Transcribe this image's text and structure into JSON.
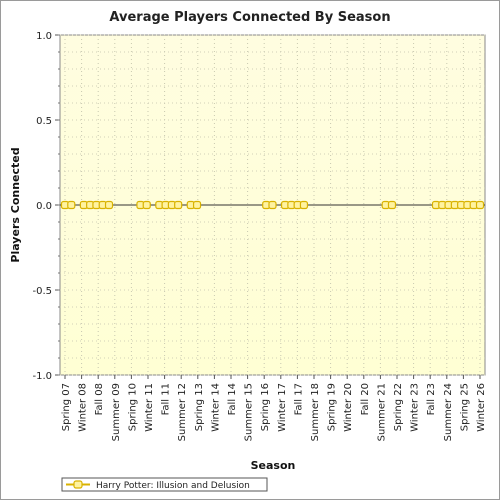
{
  "chart_data": {
    "type": "line",
    "title": "Average Players Connected By Season",
    "xlabel": "Season",
    "ylabel": "Players Connected",
    "ylim": [
      -1.0,
      1.0
    ],
    "yticks": [
      "1.0",
      "0.5",
      "0.0",
      "-0.5",
      "-1.0"
    ],
    "ytick_values": [
      1.0,
      0.5,
      0.0,
      -0.5,
      -1.0
    ],
    "x_tick_labels": [
      "Spring 07",
      "Winter 08",
      "Fall 08",
      "Summer 09",
      "Spring 10",
      "Winter 11",
      "Fall 11",
      "Summer 12",
      "Spring 13",
      "Winter 14",
      "Fall 14",
      "Summer 15",
      "Spring 16",
      "Winter 17",
      "Fall 17",
      "Summer 18",
      "Spring 19",
      "Winter 20",
      "Fall 20",
      "Summer 21",
      "Spring 22",
      "Winter 23",
      "Fall 23",
      "Summer 24",
      "Spring 25",
      "Winter 26"
    ],
    "grid": true,
    "legend_position": "bottom-left",
    "series": [
      {
        "name": "Harry Potter: Illusion and Delusion",
        "color": "#d9b200",
        "marker_fill": "#fff3a0",
        "x": [
          0,
          1,
          3,
          4,
          5,
          6,
          7,
          12,
          13,
          15,
          16,
          17,
          18,
          20,
          21,
          32,
          33,
          35,
          36,
          37,
          38,
          51,
          52,
          59,
          60,
          61,
          62,
          63,
          64,
          65,
          66
        ],
        "values": [
          0,
          0,
          0,
          0,
          0,
          0,
          0,
          0,
          0,
          0,
          0,
          0,
          0,
          0,
          0,
          0,
          0,
          0,
          0,
          0,
          0,
          0,
          0,
          0,
          0,
          0,
          0,
          0,
          0,
          0,
          0
        ]
      }
    ],
    "x_domain": [
      0,
      66
    ],
    "plot_background": "#ffffdd",
    "zero_line_color": "#333333"
  }
}
